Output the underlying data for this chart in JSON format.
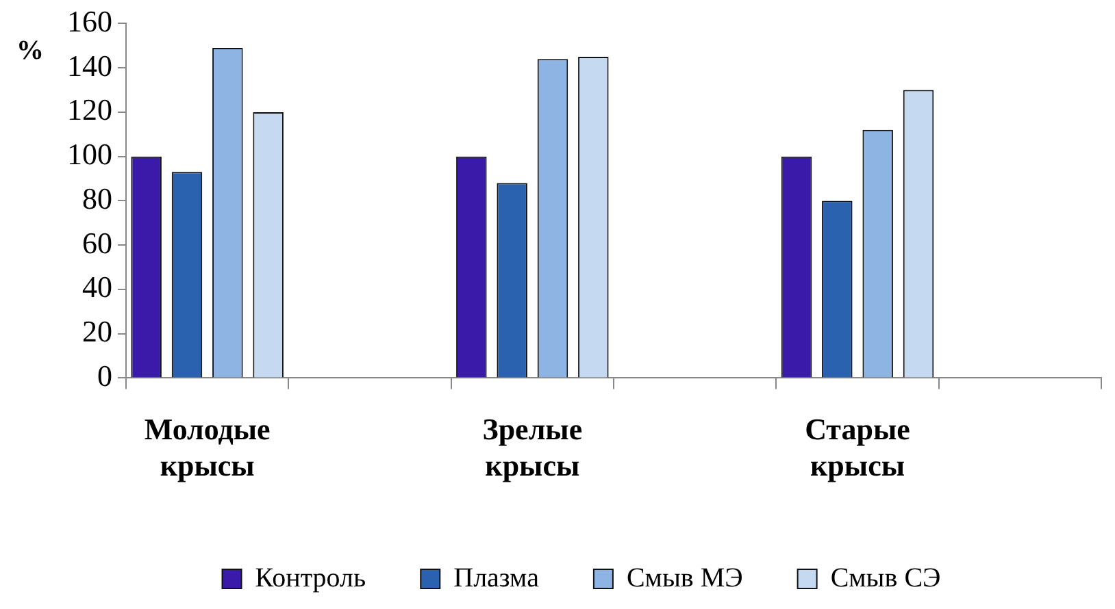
{
  "chart_data": {
    "type": "bar",
    "ylabel": "%",
    "categories": [
      "Молодые крысы",
      null,
      "Зрелые крысы",
      null,
      "Старые крысы",
      null
    ],
    "series": [
      {
        "name": "Контроль",
        "color": "#3a1aa8",
        "values": [
          100,
          null,
          100,
          null,
          100,
          null
        ]
      },
      {
        "name": "Плазма",
        "color": "#2a62b0",
        "values": [
          93,
          null,
          88,
          null,
          80,
          null
        ]
      },
      {
        "name": "Смыв МЭ",
        "color": "#8db4e2",
        "values": [
          149,
          null,
          144,
          null,
          112,
          null
        ]
      },
      {
        "name": "Смыв СЭ",
        "color": "#c5d9f1",
        "values": [
          120,
          null,
          145,
          null,
          130,
          null
        ]
      }
    ],
    "ylim": [
      0,
      160
    ],
    "yticks": [
      0,
      20,
      40,
      60,
      80,
      100,
      120,
      140,
      160
    ],
    "grid": false,
    "legend": "bottom"
  }
}
